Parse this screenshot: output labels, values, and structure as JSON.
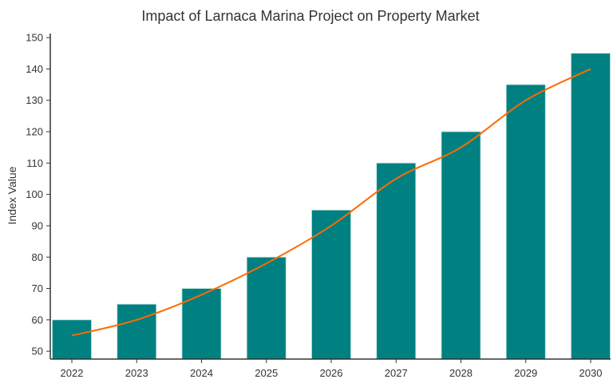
{
  "chart_data": {
    "type": "bar",
    "title": "Impact of Larnaca Marina Project on Property Market",
    "xlabel": "",
    "ylabel": "Index Value",
    "categories": [
      "2022",
      "2023",
      "2024",
      "2025",
      "2026",
      "2027",
      "2028",
      "2029",
      "2030"
    ],
    "series": [
      {
        "type": "bar",
        "values": [
          60,
          65,
          70,
          80,
          95,
          110,
          120,
          135,
          145
        ],
        "color": "#008080"
      },
      {
        "type": "line",
        "values": [
          55,
          60,
          68,
          78,
          90,
          105,
          115,
          130,
          140
        ],
        "color": "#ff6a00"
      }
    ],
    "ylim": [
      47.5,
      151.3
    ],
    "yticks": [
      50,
      60,
      70,
      80,
      90,
      100,
      110,
      120,
      130,
      140,
      150
    ],
    "grid": false,
    "legend": "none"
  }
}
